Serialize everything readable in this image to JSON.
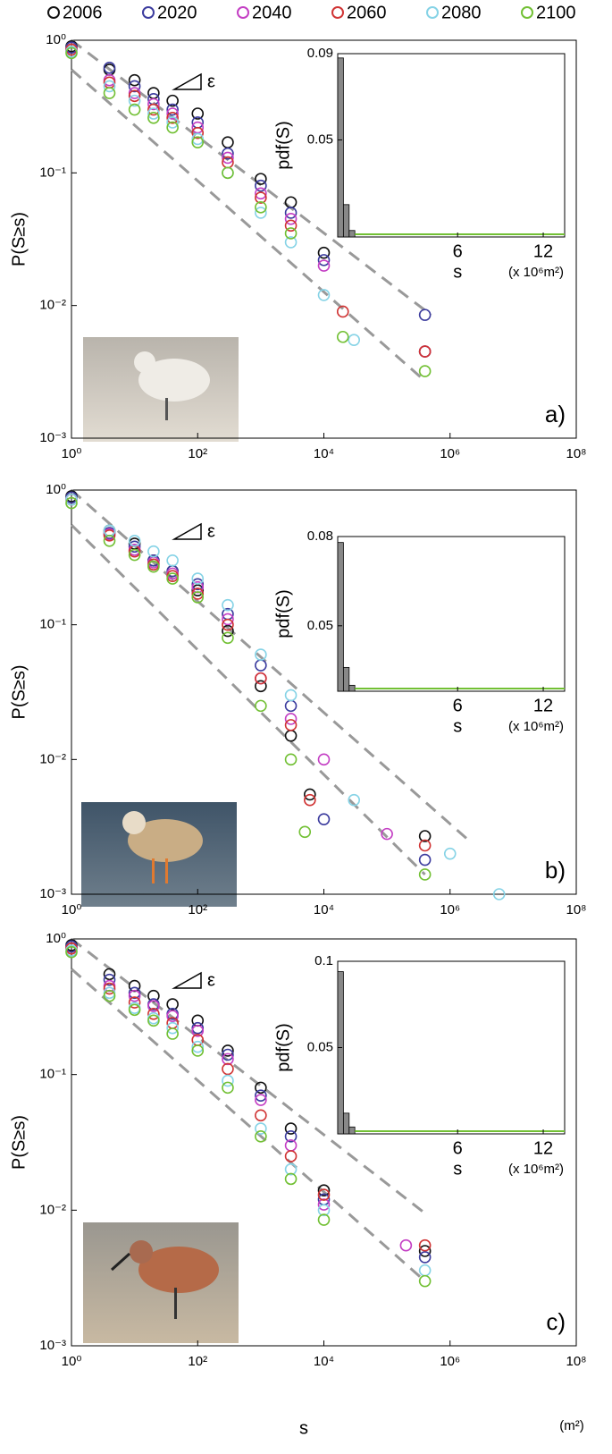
{
  "legend": {
    "labels": [
      "2006",
      "2020",
      "2040",
      "2060",
      "2080",
      "2100"
    ],
    "colors": [
      "#111111",
      "#3c3c9e",
      "#c43fc4",
      "#d03434",
      "#86d3e6",
      "#72c034"
    ]
  },
  "x_label": "s",
  "x_unit": "(m²)",
  "chart_data": [
    {
      "type": "scatter",
      "log_scale": true,
      "panel_label": "a)",
      "ylabel": "P(S≥s)",
      "annotation": "ε",
      "xlim": [
        1,
        100000000
      ],
      "ylim": [
        0.001,
        1
      ],
      "xticks": [
        {
          "value": 1,
          "label": "10⁰"
        },
        {
          "value": 100,
          "label": "10²"
        },
        {
          "value": 10000,
          "label": "10⁴"
        },
        {
          "value": 1000000,
          "label": "10⁶"
        },
        {
          "value": 100000000,
          "label": "10⁸"
        }
      ],
      "yticks": [
        {
          "value": 0.001,
          "label": "10⁻³"
        },
        {
          "value": 0.01,
          "label": "10⁻²"
        },
        {
          "value": 0.1,
          "label": "10⁻¹"
        },
        {
          "value": 1,
          "label": "10⁰"
        }
      ],
      "series": [
        {
          "x": [
            1,
            4,
            10,
            20,
            40,
            100,
            300,
            1000,
            3000,
            10000,
            400000
          ],
          "values": [
            0.9,
            0.6,
            0.5,
            0.4,
            0.35,
            0.28,
            0.17,
            0.09,
            0.06,
            0.025,
            0.0045
          ]
        },
        {
          "x": [
            1,
            4,
            10,
            20,
            40,
            100,
            300,
            1000,
            3000,
            10000,
            400000
          ],
          "values": [
            0.88,
            0.62,
            0.45,
            0.36,
            0.3,
            0.24,
            0.14,
            0.08,
            0.05,
            0.022,
            0.0085
          ]
        },
        {
          "x": [
            1,
            4,
            10,
            20,
            40,
            100,
            300,
            1000,
            3000,
            10000,
            400000
          ],
          "values": [
            0.85,
            0.5,
            0.4,
            0.33,
            0.28,
            0.22,
            0.13,
            0.07,
            0.045,
            0.02,
            0.0045
          ]
        },
        {
          "x": [
            1,
            4,
            10,
            20,
            40,
            100,
            300,
            1000,
            3000,
            20000,
            400000
          ],
          "values": [
            0.85,
            0.48,
            0.38,
            0.3,
            0.26,
            0.2,
            0.12,
            0.065,
            0.04,
            0.009,
            0.0045
          ]
        },
        {
          "x": [
            1,
            4,
            10,
            20,
            40,
            100,
            300,
            1000,
            3000,
            10000,
            30000
          ],
          "values": [
            0.82,
            0.45,
            0.35,
            0.28,
            0.24,
            0.18,
            0.1,
            0.05,
            0.03,
            0.012,
            0.0055
          ]
        },
        {
          "x": [
            1,
            4,
            10,
            20,
            40,
            100,
            300,
            1000,
            3000,
            20000,
            400000
          ],
          "values": [
            0.8,
            0.4,
            0.3,
            0.26,
            0.22,
            0.17,
            0.1,
            0.055,
            0.035,
            0.0058,
            0.0032
          ]
        }
      ],
      "reference_lines": [
        {
          "x": [
            1,
            500000
          ],
          "values": [
            1,
            0.0085
          ]
        },
        {
          "x": [
            1,
            400000
          ],
          "values": [
            0.6,
            0.0027
          ]
        }
      ],
      "inset": {
        "type": "histogram",
        "ylabel": "pdf(S)",
        "xlabel": "s",
        "unit": "(x 10⁶m²)",
        "xlim": [
          -2.4,
          13.5
        ],
        "ylim": [
          0.005,
          0.09
        ],
        "xticks": [
          6,
          12
        ],
        "yticks": [
          0.05,
          0.09
        ],
        "color": "#888888",
        "bins": [
          -2.4,
          -2,
          -1.6,
          -1.2
        ],
        "counts": [
          0.088,
          0.02,
          0.008
        ]
      }
    },
    {
      "type": "scatter",
      "log_scale": true,
      "panel_label": "b)",
      "ylabel": "P(S≥s)",
      "annotation": "ε",
      "xlim": [
        1,
        100000000
      ],
      "ylim": [
        0.001,
        1
      ],
      "xticks": [
        {
          "value": 1,
          "label": "10⁰"
        },
        {
          "value": 100,
          "label": "10²"
        },
        {
          "value": 10000,
          "label": "10⁴"
        },
        {
          "value": 1000000,
          "label": "10⁶"
        },
        {
          "value": 100000000,
          "label": "10⁸"
        }
      ],
      "yticks": [
        {
          "value": 0.001,
          "label": "10⁻³"
        },
        {
          "value": 0.01,
          "label": "10⁻²"
        },
        {
          "value": 0.1,
          "label": "10⁻¹"
        },
        {
          "value": 1,
          "label": "10⁰"
        }
      ],
      "series": [
        {
          "x": [
            1,
            4,
            10,
            20,
            40,
            100,
            300,
            1000,
            3000,
            6000,
            400000
          ],
          "values": [
            0.9,
            0.5,
            0.4,
            0.3,
            0.25,
            0.18,
            0.09,
            0.035,
            0.015,
            0.0055,
            0.0027
          ]
        },
        {
          "x": [
            1,
            4,
            10,
            20,
            40,
            100,
            300,
            1000,
            3000,
            10000,
            400000
          ],
          "values": [
            0.88,
            0.48,
            0.38,
            0.3,
            0.25,
            0.2,
            0.12,
            0.05,
            0.025,
            0.0036,
            0.0018
          ]
        },
        {
          "x": [
            1,
            4,
            10,
            20,
            40,
            100,
            300,
            1000,
            3000,
            10000,
            100000
          ],
          "values": [
            0.85,
            0.47,
            0.36,
            0.29,
            0.24,
            0.19,
            0.11,
            0.04,
            0.02,
            0.01,
            0.0028
          ]
        },
        {
          "x": [
            1,
            4,
            10,
            20,
            40,
            100,
            300,
            1000,
            3000,
            6000,
            400000
          ],
          "values": [
            0.85,
            0.46,
            0.35,
            0.28,
            0.23,
            0.17,
            0.1,
            0.04,
            0.018,
            0.005,
            0.0023
          ]
        },
        {
          "x": [
            1,
            4,
            10,
            20,
            40,
            100,
            300,
            1000,
            3000,
            30000,
            1000000,
            6000000
          ],
          "values": [
            0.85,
            0.5,
            0.42,
            0.35,
            0.3,
            0.22,
            0.14,
            0.06,
            0.03,
            0.005,
            0.002,
            0.001
          ]
        },
        {
          "x": [
            1,
            4,
            10,
            20,
            40,
            100,
            300,
            1000,
            3000,
            5000,
            400000
          ],
          "values": [
            0.8,
            0.42,
            0.33,
            0.27,
            0.22,
            0.16,
            0.08,
            0.025,
            0.01,
            0.0029,
            0.0014
          ]
        }
      ],
      "reference_lines": [
        {
          "x": [
            1,
            2000000
          ],
          "values": [
            1,
            0.0025
          ]
        },
        {
          "x": [
            1,
            400000
          ],
          "values": [
            0.55,
            0.0014
          ]
        }
      ],
      "inset": {
        "type": "histogram",
        "ylabel": "pdf(S)",
        "xlabel": "s",
        "unit": "(x 10⁶m²)",
        "xlim": [
          -2.4,
          13.5
        ],
        "ylim": [
          0.028,
          0.08
        ],
        "xticks": [
          6,
          12
        ],
        "yticks": [
          0.05,
          0.08
        ],
        "color": "#888888",
        "bins": [
          -2.4,
          -2,
          -1.6,
          -1.2
        ],
        "counts": [
          0.078,
          0.036,
          0.03
        ]
      }
    },
    {
      "type": "scatter",
      "log_scale": true,
      "panel_label": "c)",
      "ylabel": "P(S≥s)",
      "annotation": "ε",
      "xlim": [
        1,
        100000000
      ],
      "ylim": [
        0.001,
        1
      ],
      "xticks": [
        {
          "value": 1,
          "label": "10⁰"
        },
        {
          "value": 100,
          "label": "10²"
        },
        {
          "value": 10000,
          "label": "10⁴"
        },
        {
          "value": 1000000,
          "label": "10⁶"
        },
        {
          "value": 100000000,
          "label": "10⁸"
        }
      ],
      "yticks": [
        {
          "value": 0.001,
          "label": "10⁻³"
        },
        {
          "value": 0.01,
          "label": "10⁻²"
        },
        {
          "value": 0.1,
          "label": "10⁻¹"
        },
        {
          "value": 1,
          "label": "10⁰"
        }
      ],
      "series": [
        {
          "x": [
            1,
            4,
            10,
            20,
            40,
            100,
            300,
            1000,
            3000,
            10000,
            400000
          ],
          "values": [
            0.9,
            0.55,
            0.45,
            0.38,
            0.33,
            0.25,
            0.15,
            0.08,
            0.04,
            0.014,
            0.005
          ]
        },
        {
          "x": [
            1,
            4,
            10,
            20,
            40,
            100,
            300,
            1000,
            3000,
            10000,
            400000
          ],
          "values": [
            0.88,
            0.5,
            0.4,
            0.33,
            0.28,
            0.22,
            0.14,
            0.07,
            0.035,
            0.012,
            0.0045
          ]
        },
        {
          "x": [
            1,
            4,
            10,
            20,
            40,
            100,
            300,
            1000,
            3000,
            10000,
            200000
          ],
          "values": [
            0.85,
            0.45,
            0.38,
            0.32,
            0.27,
            0.21,
            0.13,
            0.065,
            0.03,
            0.011,
            0.0055
          ]
        },
        {
          "x": [
            1,
            4,
            10,
            20,
            40,
            100,
            300,
            1000,
            3000,
            10000,
            400000
          ],
          "values": [
            0.85,
            0.43,
            0.34,
            0.28,
            0.24,
            0.18,
            0.11,
            0.05,
            0.025,
            0.013,
            0.0055
          ]
        },
        {
          "x": [
            1,
            4,
            10,
            20,
            40,
            100,
            300,
            1000,
            3000,
            10000,
            400000
          ],
          "values": [
            0.82,
            0.4,
            0.31,
            0.26,
            0.22,
            0.16,
            0.09,
            0.04,
            0.02,
            0.01,
            0.0036
          ]
        },
        {
          "x": [
            1,
            4,
            10,
            20,
            40,
            100,
            300,
            1000,
            3000,
            10000,
            400000
          ],
          "values": [
            0.8,
            0.38,
            0.3,
            0.25,
            0.2,
            0.15,
            0.08,
            0.035,
            0.017,
            0.0085,
            0.003
          ]
        }
      ],
      "reference_lines": [
        {
          "x": [
            1,
            400000
          ],
          "values": [
            1,
            0.0095
          ]
        },
        {
          "x": [
            1,
            400000
          ],
          "values": [
            0.6,
            0.003
          ]
        }
      ],
      "inset": {
        "type": "histogram",
        "ylabel": "pdf(S)",
        "xlabel": "s",
        "unit": "(x 10⁶m²)",
        "xlim": [
          -2.4,
          13.5
        ],
        "ylim": [
          0,
          0.1
        ],
        "xticks": [
          6,
          12
        ],
        "yticks": [
          0.05,
          0.1
        ],
        "color": "#888888",
        "bins": [
          -2.4,
          -2,
          -1.6,
          -1.2
        ],
        "counts": [
          0.094,
          0.012,
          0.004
        ]
      }
    }
  ]
}
